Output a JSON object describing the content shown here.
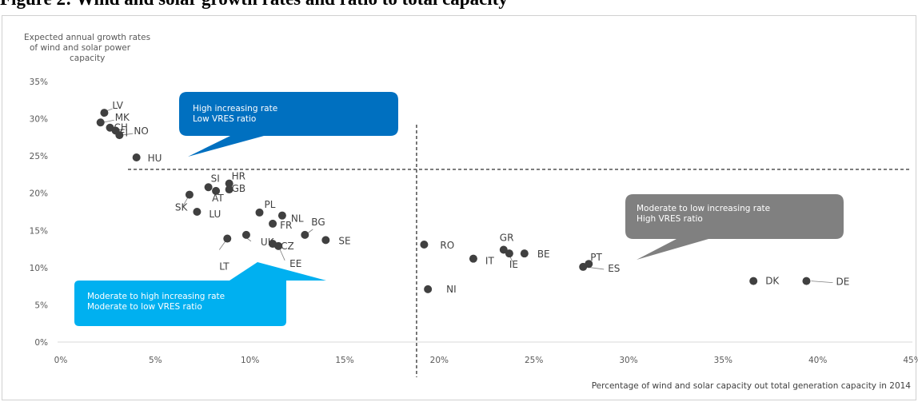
{
  "figure_title": "Figure 2: Wind and solar growth rates and ratio to total capacity",
  "chart_data": {
    "type": "scatter",
    "ylabel": [
      "Expected annual growth rates",
      "of wind and solar power",
      "capacity"
    ],
    "xlabel": "Percentage of wind and solar capacity out total generation capacity in 2014",
    "xlim": [
      0,
      45
    ],
    "ylim": [
      0,
      35
    ],
    "x_ticks": [
      0,
      5,
      10,
      15,
      20,
      25,
      30,
      35,
      40,
      45
    ],
    "y_ticks": [
      0,
      5,
      10,
      15,
      20,
      25,
      30,
      35
    ],
    "x_tick_labels": [
      "0%",
      "5%",
      "10%",
      "15%",
      "20%",
      "25%",
      "30%",
      "35%",
      "40%",
      "45%"
    ],
    "y_tick_labels": [
      "0%",
      "5%",
      "10%",
      "15%",
      "20%",
      "25%",
      "30%",
      "35%"
    ],
    "threshold_x": 18.8,
    "threshold_y": 23.2,
    "points": [
      {
        "label": "LV",
        "x": 2.3,
        "y": 30.8
      },
      {
        "label": "MK",
        "x": 2.1,
        "y": 29.5
      },
      {
        "label": "CH",
        "x": 2.6,
        "y": 28.8
      },
      {
        "label": "FI",
        "x": 2.9,
        "y": 28.4
      },
      {
        "label": "NO",
        "x": 3.1,
        "y": 27.8
      },
      {
        "label": "HU",
        "x": 4.0,
        "y": 24.8
      },
      {
        "label": "SI",
        "x": 7.8,
        "y": 20.8
      },
      {
        "label": "HR",
        "x": 8.9,
        "y": 21.3
      },
      {
        "label": "GB",
        "x": 8.9,
        "y": 20.5
      },
      {
        "label": "AT",
        "x": 8.2,
        "y": 20.3
      },
      {
        "label": "SK",
        "x": 6.8,
        "y": 19.8
      },
      {
        "label": "LU",
        "x": 7.2,
        "y": 17.5
      },
      {
        "label": "PL",
        "x": 10.5,
        "y": 17.4
      },
      {
        "label": "NL",
        "x": 11.7,
        "y": 17.0
      },
      {
        "label": "FR",
        "x": 11.2,
        "y": 15.9
      },
      {
        "label": "BG",
        "x": 12.9,
        "y": 14.4
      },
      {
        "label": "SE",
        "x": 14.0,
        "y": 13.7
      },
      {
        "label": "UK",
        "x": 9.8,
        "y": 14.4
      },
      {
        "label": "LT",
        "x": 8.8,
        "y": 13.9
      },
      {
        "label": "CZ",
        "x": 11.2,
        "y": 13.2
      },
      {
        "label": "EE",
        "x": 11.5,
        "y": 12.9
      },
      {
        "label": "RO",
        "x": 19.2,
        "y": 13.1
      },
      {
        "label": "GR",
        "x": 23.4,
        "y": 12.4
      },
      {
        "label": "IE",
        "x": 23.7,
        "y": 11.9
      },
      {
        "label": "BE",
        "x": 24.5,
        "y": 11.9
      },
      {
        "label": "IT",
        "x": 21.8,
        "y": 11.2
      },
      {
        "label": "PT",
        "x": 27.9,
        "y": 10.5
      },
      {
        "label": "ES",
        "x": 27.6,
        "y": 10.1
      },
      {
        "label": "NI",
        "x": 19.4,
        "y": 7.1
      },
      {
        "label": "DK",
        "x": 36.6,
        "y": 8.2
      },
      {
        "label": "DE",
        "x": 39.4,
        "y": 8.2
      }
    ],
    "annotations": [
      {
        "id": "high-rate-low-vres",
        "lines": [
          "High increasing rate",
          "Low VRES ratio"
        ],
        "color": "#0070c0"
      },
      {
        "id": "moderate-rate-high-vres",
        "lines": [
          "Moderate to low increasing rate",
          "High VRES ratio"
        ],
        "color": "#808080"
      },
      {
        "id": "moderate-high-rate-low-vres",
        "lines": [
          "Moderate to high increasing rate",
          "Moderate to low VRES ratio"
        ],
        "color": "#00b0f0"
      }
    ],
    "colors": {
      "marker": "#404040",
      "axis_text": "#595959",
      "threshold": "#404040"
    },
    "grid": false,
    "legend": "none"
  }
}
